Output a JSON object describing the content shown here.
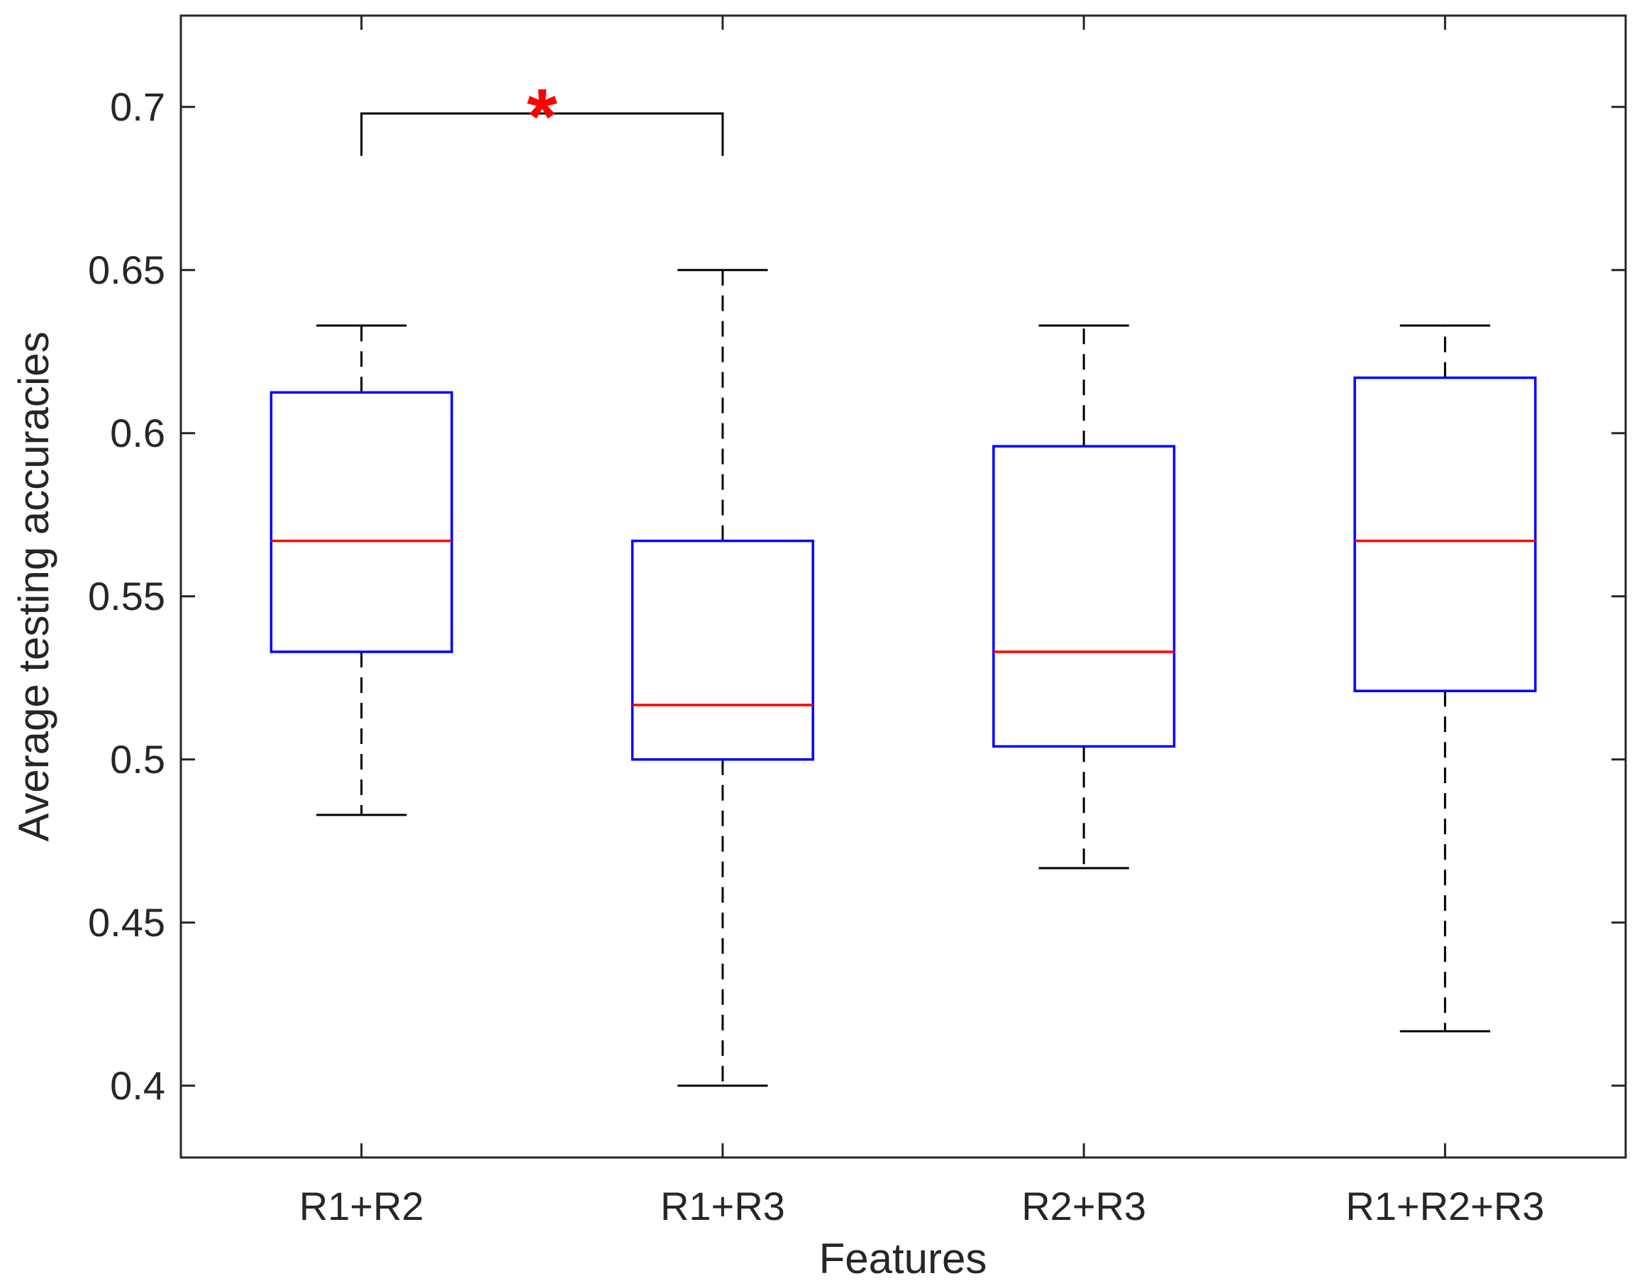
{
  "chart_data": {
    "type": "box",
    "xlabel": "Features",
    "ylabel": "Average testing accuracies",
    "ylim": [
      0.378,
      0.728
    ],
    "yticks": [
      0.4,
      0.45,
      0.5,
      0.55,
      0.6,
      0.65,
      0.7
    ],
    "ytick_labels": [
      "0.4",
      "0.45",
      "0.5",
      "0.55",
      "0.6",
      "0.65",
      "0.7"
    ],
    "categories": [
      "R1+R2",
      "R1+R3",
      "R2+R3",
      "R1+R2+R3"
    ],
    "boxes": [
      {
        "name": "R1+R2",
        "whisker_low": 0.483,
        "q1": 0.533,
        "median": 0.567,
        "q3": 0.6125,
        "whisker_high": 0.633
      },
      {
        "name": "R1+R3",
        "whisker_low": 0.4,
        "q1": 0.5,
        "median": 0.5167,
        "q3": 0.567,
        "whisker_high": 0.65
      },
      {
        "name": "R2+R3",
        "whisker_low": 0.4667,
        "q1": 0.504,
        "median": 0.533,
        "q3": 0.596,
        "whisker_high": 0.633
      },
      {
        "name": "R1+R2+R3",
        "whisker_low": 0.4167,
        "q1": 0.521,
        "median": 0.567,
        "q3": 0.617,
        "whisker_high": 0.633
      }
    ],
    "significance": {
      "from": "R1+R2",
      "to": "R1+R3",
      "label": "*",
      "bracket_y": 0.698,
      "bracket_drop_y": 0.685
    },
    "colors": {
      "box": "#0000ff",
      "median": "#ff0000",
      "whisker": "#000000",
      "axis": "#262626",
      "significance": "#ff0000"
    },
    "grid": false,
    "legend": "none"
  }
}
